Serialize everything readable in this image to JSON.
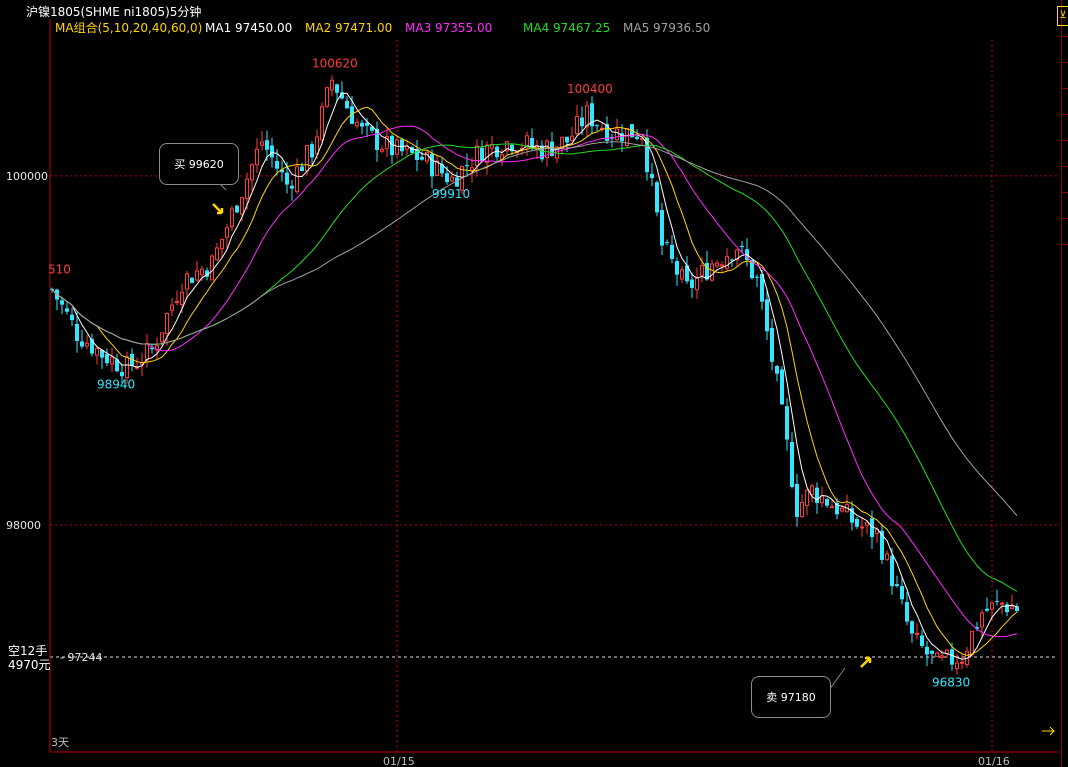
{
  "header": {
    "title": "沪镍1805(SHME ni1805)5分钟",
    "ma_group": "MA组合(5,10,20,40,60,0)",
    "ma_items": [
      {
        "label": "MA1",
        "value": "97450.00",
        "color": "#ffffff"
      },
      {
        "label": "MA2",
        "value": "97471.00",
        "color": "#ffd400"
      },
      {
        "label": "MA3",
        "value": "97355.00",
        "color": "#ff2bff"
      },
      {
        "label": "MA4",
        "value": "97467.25",
        "color": "#22dd22"
      },
      {
        "label": "MA5",
        "value": "97936.50",
        "color": "#a0a0a0"
      }
    ]
  },
  "colors": {
    "up": "#ff3b3b",
    "down": "#33e6ff",
    "grid": "#c00000",
    "axis": "#c00000",
    "ma1": "#ffffff",
    "ma2": "#ffd400",
    "ma3": "#ff2bff",
    "ma4": "#22dd22",
    "ma5": "#a0a0a0"
  },
  "chart_data": {
    "type": "candlestick",
    "ylim": [
      96700,
      100790
    ],
    "yticks": [
      {
        "value": 100000,
        "label": "100000"
      },
      {
        "value": 98000,
        "label": "98000"
      }
    ],
    "xticks": [
      {
        "label": "01/15",
        "bar": 69
      },
      {
        "label": "01/16",
        "bar": 188
      }
    ],
    "period_label": "3天",
    "position_line": {
      "value": 97244,
      "label": "97244"
    },
    "annotations": [
      {
        "text": "100620",
        "kind": "high",
        "bar": 56,
        "color": "red"
      },
      {
        "text": "100400",
        "kind": "high",
        "bar": 107,
        "color": "red"
      },
      {
        "text": "99910",
        "kind": "low",
        "bar": 80,
        "color": "cyan"
      },
      {
        "text": "98940",
        "kind": "low",
        "bar": 13,
        "color": "cyan"
      },
      {
        "text": "96830",
        "kind": "low",
        "bar": 180,
        "color": "cyan"
      },
      {
        "text": "510",
        "kind": "edge",
        "bar": 0,
        "color": "red"
      }
    ],
    "signals": [
      {
        "type": "buy",
        "label": "买",
        "price": "99620"
      },
      {
        "type": "sell",
        "label": "卖",
        "price": "97180"
      }
    ],
    "position": {
      "line1": "空12手",
      "line2": "4970元"
    },
    "anchors": [
      [
        0,
        99350
      ],
      [
        5,
        99100
      ],
      [
        10,
        98980
      ],
      [
        15,
        98900
      ],
      [
        20,
        99000
      ],
      [
        26,
        99400
      ],
      [
        32,
        99500
      ],
      [
        37,
        99850
      ],
      [
        42,
        100200
      ],
      [
        47,
        99950
      ],
      [
        52,
        100150
      ],
      [
        56,
        100550
      ],
      [
        62,
        100250
      ],
      [
        68,
        100150
      ],
      [
        74,
        100100
      ],
      [
        80,
        99980
      ],
      [
        86,
        100150
      ],
      [
        92,
        100200
      ],
      [
        98,
        100150
      ],
      [
        103,
        100200
      ],
      [
        107,
        100350
      ],
      [
        112,
        100250
      ],
      [
        118,
        100250
      ],
      [
        122,
        99600
      ],
      [
        127,
        99350
      ],
      [
        132,
        99500
      ],
      [
        137,
        99600
      ],
      [
        141,
        99400
      ],
      [
        145,
        98800
      ],
      [
        149,
        98100
      ],
      [
        152,
        98200
      ],
      [
        157,
        98100
      ],
      [
        161,
        98000
      ],
      [
        165,
        97950
      ],
      [
        168,
        97700
      ],
      [
        172,
        97350
      ],
      [
        177,
        97200
      ],
      [
        182,
        97250
      ],
      [
        186,
        97500
      ],
      [
        190,
        97550
      ],
      [
        193,
        97520
      ]
    ]
  }
}
